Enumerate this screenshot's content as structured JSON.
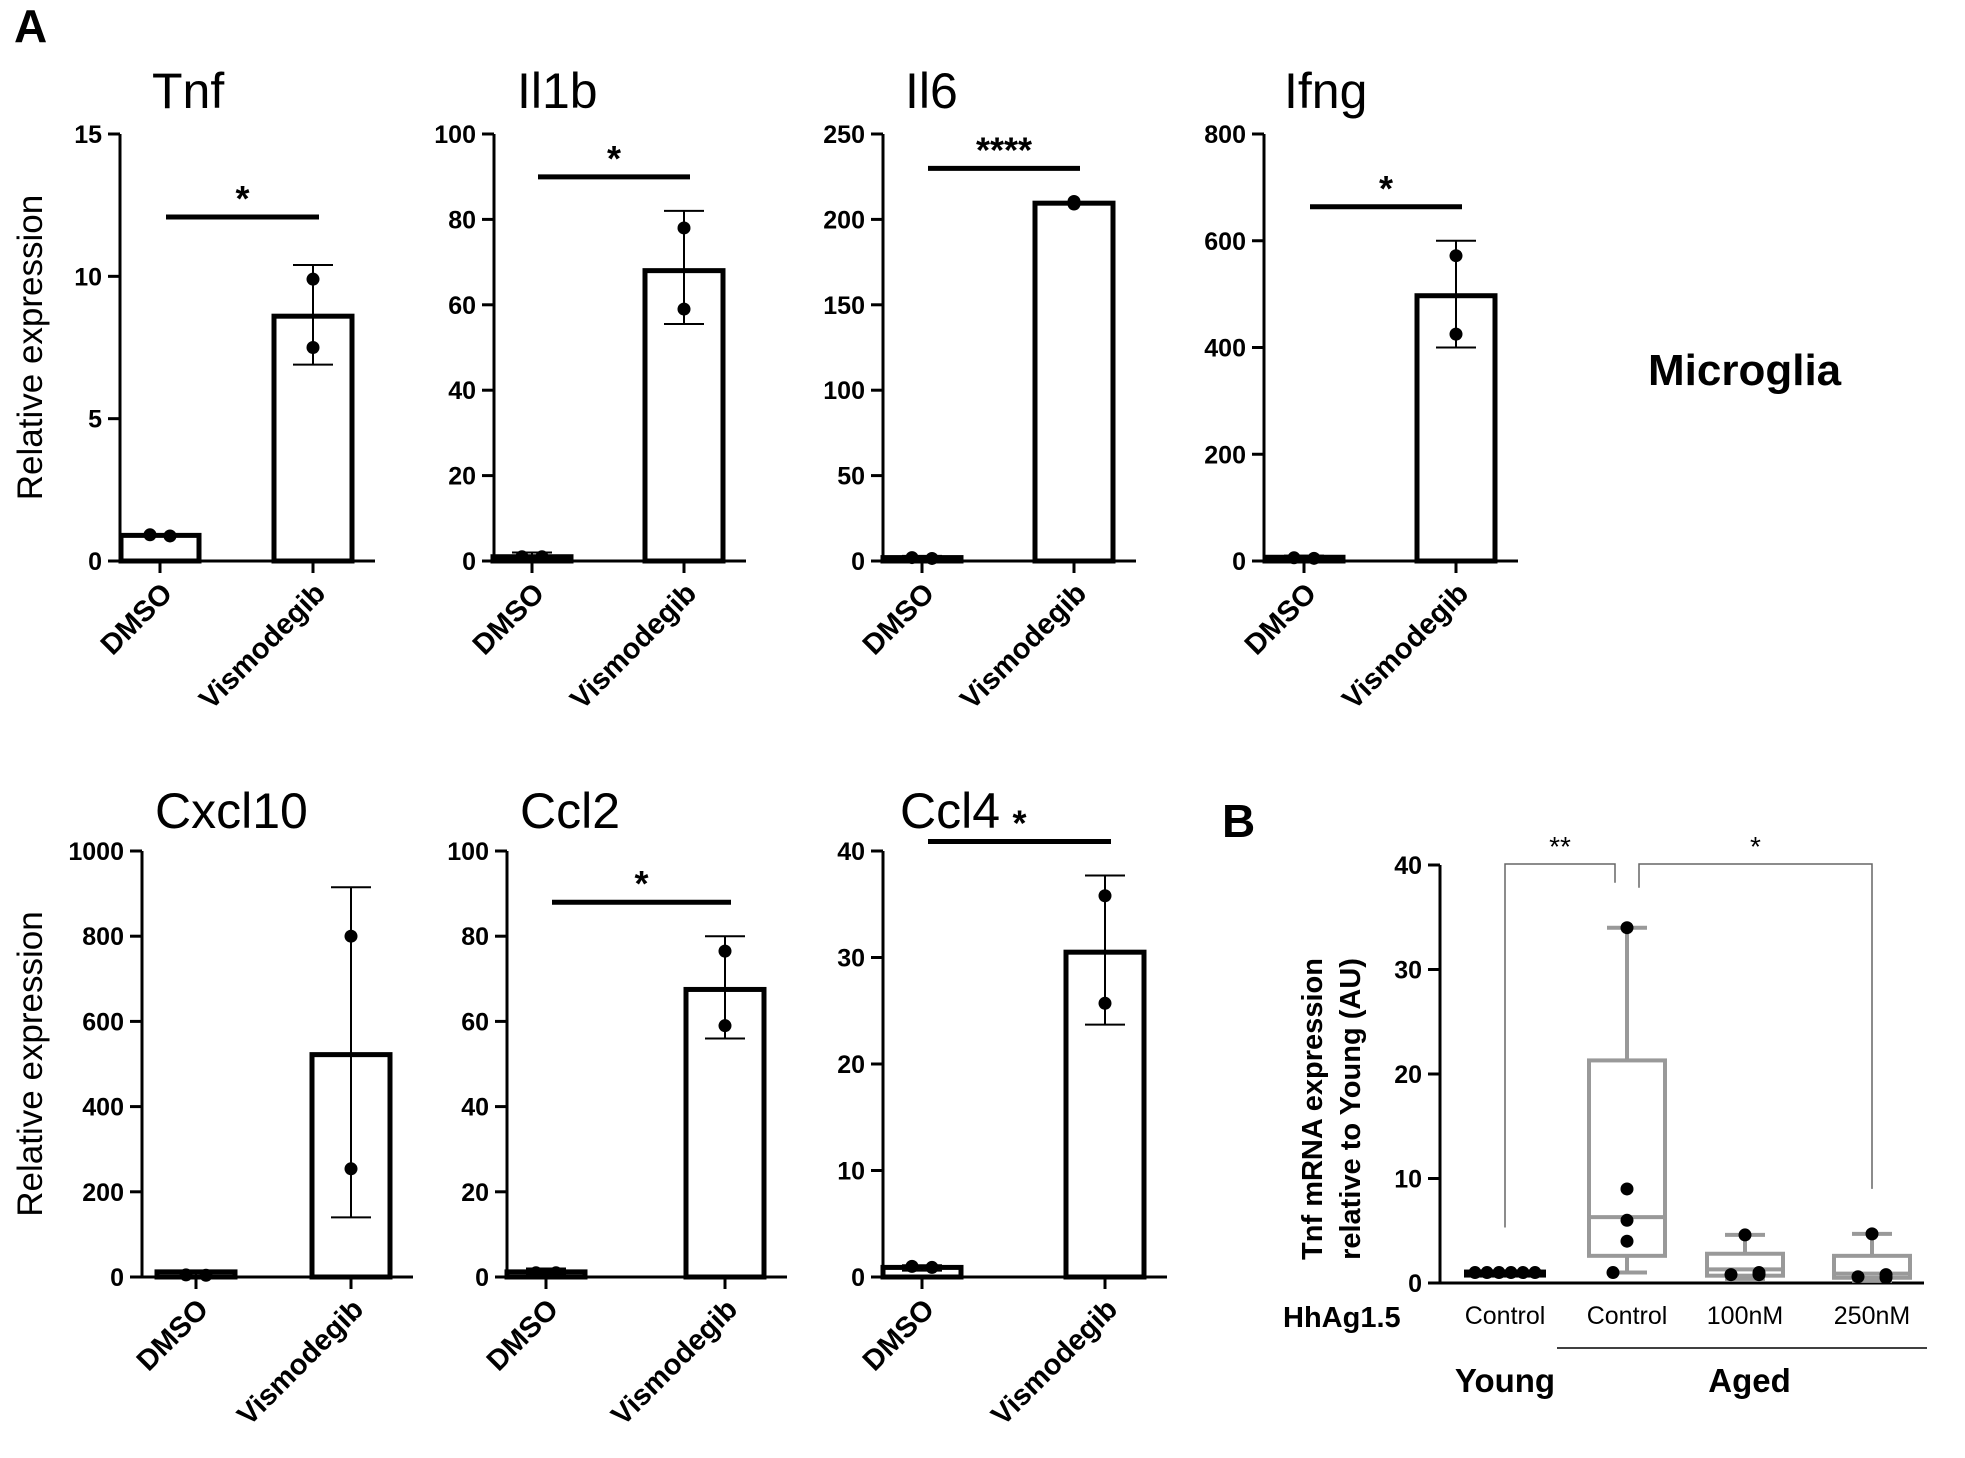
{
  "panel_labels": {
    "a": "A",
    "b": "B"
  },
  "side_label": "Microglia",
  "colors": {
    "ink": "#000000",
    "box_gray": "#999999",
    "line_gray": "#666666"
  },
  "chart_data": [
    {
      "id": "tnf",
      "type": "bar",
      "title": "Tnf",
      "ylabel": "Relative expression",
      "categories": [
        "DMSO",
        "Vismodegib"
      ],
      "ylim": [
        0,
        15
      ],
      "yticks": [
        "0",
        "5",
        "10",
        "15"
      ],
      "values": [
        0.9,
        8.6
      ],
      "error_low": [
        0.9,
        6.9
      ],
      "error_high": [
        0.9,
        10.4
      ],
      "points": [
        [
          0.92,
          0.88
        ],
        [
          7.5,
          9.9
        ]
      ],
      "significance": "*"
    },
    {
      "id": "il1b",
      "type": "bar",
      "title": "Il1b",
      "ylabel": "",
      "categories": [
        "DMSO",
        "Vismodegib"
      ],
      "ylim": [
        0,
        100
      ],
      "yticks": [
        "0",
        "20",
        "40",
        "60",
        "80",
        "100"
      ],
      "values": [
        1.0,
        68
      ],
      "error_low": [
        0.5,
        55.5
      ],
      "error_high": [
        2.0,
        82
      ],
      "points": [
        [
          1.0,
          1.0
        ],
        [
          59,
          78
        ]
      ],
      "significance": "*"
    },
    {
      "id": "il6",
      "type": "bar",
      "title": "Il6",
      "ylabel": "",
      "categories": [
        "DMSO",
        "Vismodegib"
      ],
      "ylim": [
        0,
        250
      ],
      "yticks": [
        "0",
        "50",
        "100",
        "150",
        "200",
        "250"
      ],
      "values": [
        2.0,
        209.5
      ],
      "error_low": [
        1.0,
        209
      ],
      "error_high": [
        3.0,
        210
      ],
      "points": [
        [
          2.0,
          1.5
        ],
        [
          209,
          210.5
        ]
      ],
      "significance": "****"
    },
    {
      "id": "ifng",
      "type": "bar",
      "title": "Ifng",
      "ylabel": "",
      "categories": [
        "DMSO",
        "Vismodegib"
      ],
      "ylim": [
        0,
        800
      ],
      "yticks": [
        "0",
        "200",
        "400",
        "600",
        "800"
      ],
      "values": [
        7,
        497
      ],
      "error_low": [
        4,
        400
      ],
      "error_high": [
        10,
        600
      ],
      "points": [
        [
          6,
          5
        ],
        [
          425,
          572
        ]
      ],
      "significance": "*"
    },
    {
      "id": "cxcl10",
      "type": "bar",
      "title": "Cxcl10",
      "ylabel": "Relative expression",
      "categories": [
        "DMSO",
        "Vismodegib"
      ],
      "ylim": [
        0,
        1000
      ],
      "yticks": [
        "0",
        "200",
        "400",
        "600",
        "800",
        "1000"
      ],
      "values": [
        12,
        522
      ],
      "error_low": [
        3,
        140
      ],
      "error_high": [
        14,
        915
      ],
      "points": [
        [
          5,
          4
        ],
        [
          254,
          800
        ]
      ],
      "significance": ""
    },
    {
      "id": "ccl2",
      "type": "bar",
      "title": "Ccl2",
      "ylabel": "",
      "categories": [
        "DMSO",
        "Vismodegib"
      ],
      "ylim": [
        0,
        100
      ],
      "yticks": [
        "0",
        "20",
        "40",
        "60",
        "80",
        "100"
      ],
      "values": [
        1.2,
        67.5
      ],
      "error_low": [
        0.5,
        56
      ],
      "error_high": [
        2.0,
        80
      ],
      "points": [
        [
          1.0,
          1.0
        ],
        [
          59,
          76.5
        ]
      ],
      "significance": "*"
    },
    {
      "id": "ccl4",
      "type": "bar",
      "title": "Ccl4",
      "ylabel": "",
      "categories": [
        "DMSO",
        "Vismodegib"
      ],
      "ylim": [
        0,
        40
      ],
      "yticks": [
        "0",
        "10",
        "20",
        "30",
        "40"
      ],
      "values": [
        0.9,
        30.5
      ],
      "error_low": [
        0.6,
        23.7
      ],
      "error_high": [
        1.1,
        37.7
      ],
      "points": [
        [
          1.0,
          0.9
        ],
        [
          25.7,
          35.8
        ]
      ],
      "significance": "*"
    },
    {
      "id": "tnf_box",
      "type": "box",
      "ylabel_lines": [
        "Tnf mRNA expression",
        "relative to Young (AU)"
      ],
      "ylim": [
        0,
        40
      ],
      "yticks": [
        "0",
        "10",
        "20",
        "30",
        "40"
      ],
      "row_label": "HhAg1.5",
      "categories": [
        "Control",
        "Control",
        "100nM",
        "250nM"
      ],
      "groups": [
        {
          "label": "Young",
          "span": [
            0,
            0
          ]
        },
        {
          "label": "Aged",
          "span": [
            1,
            3
          ]
        }
      ],
      "boxes": [
        {
          "min": 1.0,
          "q1": 1.0,
          "median": 1.0,
          "q3": 1.0,
          "max": 1.0,
          "points": [
            1.0,
            1.0,
            1.0,
            1.0,
            1.0,
            1.0
          ]
        },
        {
          "min": 1.0,
          "q1": 2.6,
          "median": 6.3,
          "q3": 21.3,
          "max": 34.0,
          "points": [
            34.0,
            9.0,
            6.0,
            4.0,
            1.0
          ]
        },
        {
          "min": 0.4,
          "q1": 0.7,
          "median": 1.3,
          "q3": 2.8,
          "max": 4.6,
          "points": [
            4.6,
            1.0,
            0.8,
            0.8
          ]
        },
        {
          "min": 0.2,
          "q1": 0.5,
          "median": 0.9,
          "q3": 2.6,
          "max": 4.7,
          "points": [
            4.7,
            0.8,
            0.6,
            0.5
          ]
        }
      ],
      "comparisons": [
        {
          "from": 0,
          "to": 1,
          "label": "**"
        },
        {
          "from": 1,
          "to": 3,
          "label": "*"
        }
      ]
    }
  ]
}
